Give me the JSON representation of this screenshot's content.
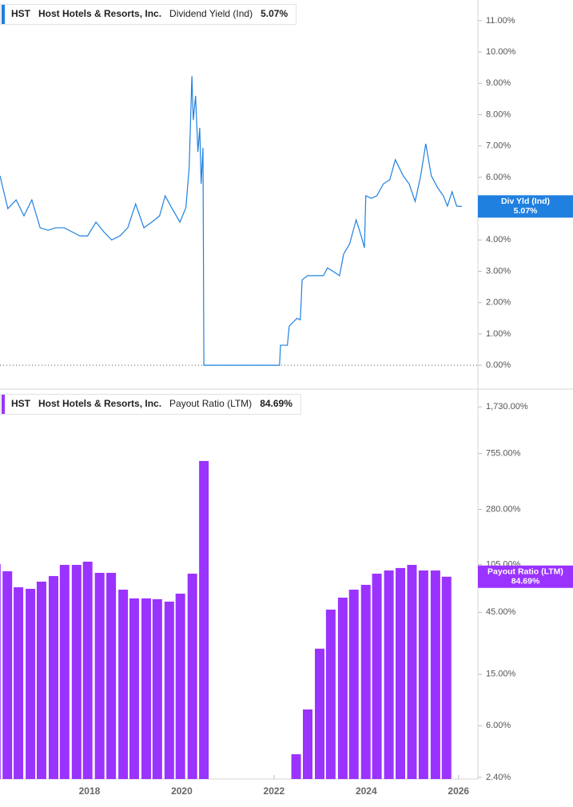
{
  "chart_data": [
    {
      "type": "line",
      "ticker": "HST",
      "company": "Host Hotels & Resorts, Inc.",
      "current_label": "5.07%",
      "badge_label": "Div Yld (Ind)",
      "x": [
        2016.06,
        2016.23,
        2016.41,
        2016.58,
        2016.75,
        2016.93,
        2017.1,
        2017.27,
        2017.45,
        2017.62,
        2017.79,
        2017.96,
        2018.14,
        2018.31,
        2018.48,
        2018.66,
        2018.83,
        2019.0,
        2019.18,
        2019.35,
        2019.52,
        2019.64,
        2019.78,
        2019.96,
        2020.09,
        2020.16,
        2020.22,
        2020.25,
        2020.3,
        2020.35,
        2020.39,
        2020.42,
        2020.46,
        2020.48,
        2022.12,
        2022.14,
        2022.29,
        2022.33,
        2022.5,
        2022.57,
        2022.61,
        2022.73,
        2022.9,
        2023.07,
        2023.16,
        2023.3,
        2023.42,
        2023.51,
        2023.64,
        2023.78,
        2023.89,
        2023.96,
        2023.99,
        2024.11,
        2024.23,
        2024.37,
        2024.51,
        2024.63,
        2024.8,
        2024.93,
        2025.06,
        2025.18,
        2025.29,
        2025.41,
        2025.55,
        2025.67,
        2025.76,
        2025.86,
        2025.96,
        2026.07
      ],
      "series": [
        {
          "name": "Dividend Yield (Ind)",
          "color": "#1f80e0",
          "values": [
            6.05,
            5.0,
            5.28,
            4.77,
            5.28,
            4.39,
            4.31,
            4.39,
            4.39,
            4.26,
            4.13,
            4.13,
            4.57,
            4.26,
            4.0,
            4.13,
            4.39,
            5.15,
            4.39,
            4.57,
            4.77,
            5.41,
            5.03,
            4.57,
            5.03,
            6.3,
            9.23,
            7.83,
            8.6,
            6.81,
            7.58,
            5.79,
            6.94,
            0,
            0,
            0.64,
            0.64,
            1.25,
            1.5,
            1.45,
            2.73,
            2.86,
            2.86,
            2.86,
            3.11,
            2.98,
            2.86,
            3.55,
            3.88,
            4.64,
            4.13,
            3.75,
            5.41,
            5.33,
            5.41,
            5.79,
            5.92,
            6.56,
            6.05,
            5.79,
            5.23,
            6.05,
            7.07,
            6.05,
            5.66,
            5.41,
            5.08,
            5.54,
            5.08,
            5.07
          ]
        }
      ],
      "xlim": [
        2016.06,
        2026.42
      ],
      "ylim": [
        -0.71,
        11.66
      ],
      "yticks": [
        {
          "value": 0,
          "label": "0.00%"
        },
        {
          "value": 1,
          "label": "1.00%"
        },
        {
          "value": 2,
          "label": "2.00%"
        },
        {
          "value": 3,
          "label": "3.00%"
        },
        {
          "value": 4,
          "label": "4.00%"
        },
        {
          "value": 5,
          "label": "5.00%"
        },
        {
          "value": 6,
          "label": "6.00%"
        },
        {
          "value": 7,
          "label": "7.00%"
        },
        {
          "value": 8,
          "label": "8.00%"
        },
        {
          "value": 9,
          "label": "9.00%"
        },
        {
          "value": 10,
          "label": "10.00%"
        },
        {
          "value": 11,
          "label": "11.00%"
        }
      ],
      "zero_line": true
    },
    {
      "type": "bar",
      "ticker": "HST",
      "company": "Host Hotels & Resorts, Inc.",
      "current_label": "84.69%",
      "badge_label": "Payout Ratio (LTM)",
      "x": [
        2015.97,
        2016.22,
        2016.46,
        2016.72,
        2016.96,
        2017.22,
        2017.46,
        2017.72,
        2017.96,
        2018.22,
        2018.47,
        2018.73,
        2018.97,
        2019.23,
        2019.47,
        2019.73,
        2019.97,
        2020.23,
        2020.48,
        2022.48,
        2022.73,
        2022.99,
        2023.23,
        2023.49,
        2023.73,
        2023.99,
        2024.23,
        2024.49,
        2024.74,
        2024.99,
        2025.24,
        2025.5,
        2025.74
      ],
      "series": [
        {
          "name": "Payout Ratio (LTM)",
          "color": "#9b33ff",
          "values": [
            106,
            93.3,
            70.2,
            68.3,
            77.6,
            85.7,
            104.5,
            104.5,
            110.6,
            90.7,
            90.7,
            67.3,
            57.6,
            57.6,
            56.8,
            54.4,
            62.7,
            89.4,
            661,
            3.62,
            8.02,
            23.6,
            47.2,
            58.4,
            67.3,
            73.3,
            89.4,
            94.6,
            98.8,
            104.5,
            94.6,
            94.6,
            84.69
          ]
        }
      ],
      "xlim": [
        2016.06,
        2026.42
      ],
      "xticks": [
        2018,
        2020,
        2022,
        2024,
        2026
      ],
      "ylim": [
        2.33,
        2336
      ],
      "log_scale": true,
      "yticks": [
        {
          "value": 2.4,
          "label": "2.40%"
        },
        {
          "value": 6,
          "label": "6.00%"
        },
        {
          "value": 15,
          "label": "15.00%"
        },
        {
          "value": 45,
          "label": "45.00%"
        },
        {
          "value": 105,
          "label": "105.00%"
        },
        {
          "value": 280,
          "label": "280.00%"
        },
        {
          "value": 755,
          "label": "755.00%"
        },
        {
          "value": 1730,
          "label": "1,730.00%"
        }
      ]
    }
  ]
}
